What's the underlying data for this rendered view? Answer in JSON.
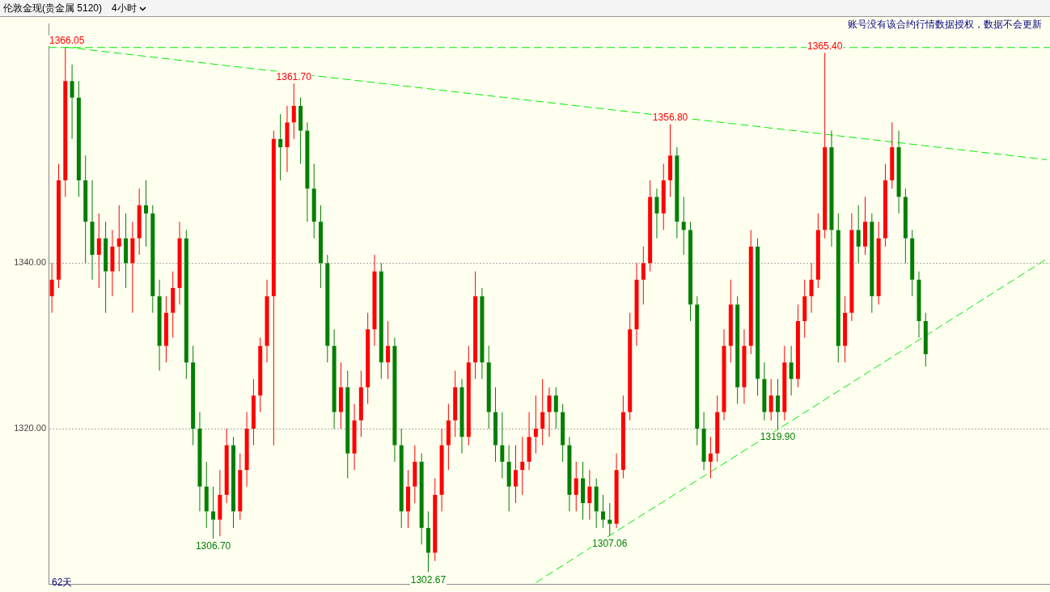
{
  "chart_data": {
    "type": "candlestick",
    "title": "伦敦金现(贵金属 5120)",
    "subtitle": "4小时",
    "categories": [
      null,
      null,
      null,
      null,
      null,
      null,
      null,
      null,
      null,
      null,
      null,
      null,
      null,
      null,
      null,
      null,
      null,
      null,
      null,
      null,
      null,
      null,
      null,
      null,
      null,
      null,
      null,
      null,
      null,
      null,
      null,
      null,
      null,
      null,
      null,
      null,
      null,
      null,
      null,
      null,
      null,
      null,
      null,
      null,
      null,
      null,
      null,
      null,
      null,
      null,
      null,
      null,
      null,
      null,
      null,
      null,
      null,
      null,
      null,
      null,
      null,
      null,
      null,
      null,
      null,
      null,
      null,
      null,
      null,
      null,
      null,
      null,
      null,
      null,
      null,
      null,
      null,
      null,
      null,
      null,
      null,
      null,
      null,
      null,
      null,
      null,
      null,
      null,
      null,
      null,
      null,
      null,
      null,
      null,
      null,
      null,
      null,
      null,
      null,
      null,
      null,
      null,
      null,
      null,
      null,
      null,
      null,
      null,
      null,
      null,
      null,
      null,
      null,
      null,
      null,
      null,
      null,
      null,
      null,
      null,
      null,
      null,
      null,
      null,
      null,
      null,
      null,
      null,
      null,
      null,
      null,
      null,
      null,
      null,
      null,
      null,
      null,
      null,
      null,
      null,
      null,
      null,
      null,
      null,
      null,
      null,
      null,
      null,
      null
    ],
    "ohlc": [
      [
        1336,
        1340,
        1334,
        1338
      ],
      [
        1338,
        1352,
        1337,
        1350
      ],
      [
        1350,
        1366.05,
        1348,
        1362
      ],
      [
        1362,
        1364,
        1355,
        1360
      ],
      [
        1360,
        1362,
        1348,
        1350
      ],
      [
        1350,
        1353,
        1340,
        1345
      ],
      [
        1345,
        1350,
        1338,
        1341
      ],
      [
        1341,
        1346,
        1337,
        1343
      ],
      [
        1343,
        1345,
        1334,
        1339
      ],
      [
        1339,
        1344,
        1336,
        1342
      ],
      [
        1342,
        1347,
        1339,
        1343
      ],
      [
        1343,
        1346,
        1337,
        1340
      ],
      [
        1340,
        1345,
        1334,
        1343
      ],
      [
        1343,
        1349,
        1341,
        1347
      ],
      [
        1347,
        1350,
        1342,
        1346
      ],
      [
        1346,
        1347,
        1334,
        1336
      ],
      [
        1336,
        1338,
        1327,
        1330
      ],
      [
        1330,
        1336,
        1328,
        1334
      ],
      [
        1334,
        1339,
        1331,
        1337
      ],
      [
        1337,
        1345,
        1335,
        1343
      ],
      [
        1343,
        1344,
        1326,
        1328
      ],
      [
        1328,
        1330,
        1318,
        1320
      ],
      [
        1320,
        1322,
        1310,
        1313
      ],
      [
        1313,
        1316,
        1308,
        1310
      ],
      [
        1310,
        1313,
        1306.7,
        1309
      ],
      [
        1309,
        1315,
        1307,
        1312
      ],
      [
        1312,
        1320,
        1311,
        1318
      ],
      [
        1318,
        1319,
        1308,
        1310
      ],
      [
        1310,
        1317,
        1309,
        1315
      ],
      [
        1315,
        1322,
        1313,
        1320
      ],
      [
        1320,
        1326,
        1318,
        1324
      ],
      [
        1324,
        1331,
        1322,
        1330
      ],
      [
        1330,
        1338,
        1328,
        1336
      ],
      [
        1336,
        1356,
        1318,
        1355
      ],
      [
        1355,
        1358,
        1350,
        1354
      ],
      [
        1354,
        1359,
        1351,
        1357
      ],
      [
        1357,
        1361.7,
        1355,
        1359
      ],
      [
        1359,
        1360,
        1352,
        1356
      ],
      [
        1356,
        1357,
        1345,
        1349
      ],
      [
        1349,
        1352,
        1343,
        1345
      ],
      [
        1345,
        1347,
        1337,
        1340
      ],
      [
        1340,
        1341,
        1328,
        1330
      ],
      [
        1330,
        1332,
        1320,
        1322
      ],
      [
        1322,
        1328,
        1320,
        1325
      ],
      [
        1325,
        1327,
        1314,
        1317
      ],
      [
        1317,
        1323,
        1315,
        1321
      ],
      [
        1321,
        1327,
        1319,
        1325
      ],
      [
        1325,
        1334,
        1323,
        1332
      ],
      [
        1332,
        1341,
        1330,
        1339
      ],
      [
        1339,
        1340,
        1326,
        1328
      ],
      [
        1328,
        1333,
        1326,
        1330
      ],
      [
        1330,
        1331,
        1316,
        1318
      ],
      [
        1318,
        1320,
        1308,
        1310
      ],
      [
        1310,
        1315,
        1308,
        1313
      ],
      [
        1313,
        1318,
        1311,
        1316
      ],
      [
        1316,
        1317,
        1306,
        1308
      ],
      [
        1308,
        1310,
        1302.67,
        1305
      ],
      [
        1305,
        1314,
        1304,
        1312
      ],
      [
        1312,
        1320,
        1310,
        1318
      ],
      [
        1318,
        1323,
        1315,
        1321
      ],
      [
        1321,
        1327,
        1319,
        1325
      ],
      [
        1325,
        1326,
        1317,
        1319
      ],
      [
        1319,
        1330,
        1318,
        1328
      ],
      [
        1328,
        1339,
        1326,
        1336
      ],
      [
        1336,
        1337,
        1326,
        1328
      ],
      [
        1328,
        1330,
        1320,
        1322
      ],
      [
        1322,
        1325,
        1316,
        1318
      ],
      [
        1318,
        1322,
        1314,
        1316
      ],
      [
        1316,
        1318,
        1310,
        1313
      ],
      [
        1313,
        1318,
        1311,
        1315
      ],
      [
        1315,
        1319,
        1312,
        1316
      ],
      [
        1316,
        1322,
        1315,
        1319
      ],
      [
        1319,
        1324,
        1317,
        1320
      ],
      [
        1320,
        1326,
        1318,
        1322
      ],
      [
        1322,
        1325,
        1319,
        1324
      ],
      [
        1324,
        1325,
        1320,
        1322
      ],
      [
        1322,
        1323,
        1316,
        1318
      ],
      [
        1318,
        1319,
        1310,
        1312
      ],
      [
        1312,
        1316,
        1310,
        1314
      ],
      [
        1314,
        1316,
        1309,
        1311
      ],
      [
        1311,
        1315,
        1309,
        1313
      ],
      [
        1313,
        1314,
        1308,
        1310
      ],
      [
        1310,
        1312,
        1308,
        1309
      ],
      [
        1309,
        1311,
        1307.06,
        1308.5
      ],
      [
        1308.5,
        1317,
        1308,
        1315
      ],
      [
        1315,
        1324,
        1314,
        1322
      ],
      [
        1322,
        1334,
        1321,
        1332
      ],
      [
        1332,
        1340,
        1330,
        1338
      ],
      [
        1338,
        1342,
        1335,
        1340
      ],
      [
        1340,
        1350,
        1339,
        1348
      ],
      [
        1348,
        1349,
        1343,
        1346
      ],
      [
        1346,
        1352,
        1344,
        1350
      ],
      [
        1350,
        1356.8,
        1348,
        1353
      ],
      [
        1353,
        1354,
        1343,
        1345
      ],
      [
        1345,
        1348,
        1341,
        1344
      ],
      [
        1344,
        1345,
        1333,
        1335
      ],
      [
        1335,
        1336,
        1318,
        1320
      ],
      [
        1320,
        1322,
        1315,
        1316
      ],
      [
        1316,
        1319,
        1314,
        1317
      ],
      [
        1317,
        1324,
        1316,
        1322
      ],
      [
        1322,
        1332,
        1321,
        1330
      ],
      [
        1330,
        1338,
        1328,
        1335
      ],
      [
        1335,
        1336,
        1323,
        1325
      ],
      [
        1325,
        1332,
        1323,
        1330
      ],
      [
        1330,
        1344,
        1329,
        1342
      ],
      [
        1342,
        1343,
        1324,
        1326
      ],
      [
        1326,
        1328,
        1321,
        1322
      ],
      [
        1322,
        1326,
        1321,
        1324
      ],
      [
        1324,
        1326,
        1319.9,
        1322
      ],
      [
        1322,
        1330,
        1321,
        1328
      ],
      [
        1328,
        1330,
        1324,
        1326
      ],
      [
        1326,
        1335,
        1325,
        1333
      ],
      [
        1333,
        1338,
        1331,
        1336
      ],
      [
        1336,
        1340,
        1334,
        1338
      ],
      [
        1338,
        1346,
        1337,
        1344
      ],
      [
        1344,
        1365.4,
        1343,
        1354
      ],
      [
        1354,
        1356,
        1342,
        1344
      ],
      [
        1344,
        1346,
        1328,
        1330
      ],
      [
        1330,
        1336,
        1328,
        1334
      ],
      [
        1334,
        1346,
        1333,
        1344
      ],
      [
        1344,
        1347,
        1340,
        1342
      ],
      [
        1342,
        1348,
        1341,
        1345
      ],
      [
        1345,
        1346,
        1334,
        1336
      ],
      [
        1336,
        1345,
        1335,
        1343
      ],
      [
        1343,
        1352,
        1342,
        1350
      ],
      [
        1350,
        1357,
        1349,
        1354
      ],
      [
        1354,
        1356,
        1346,
        1348
      ],
      [
        1348,
        1349,
        1340,
        1343
      ],
      [
        1343,
        1344,
        1336,
        1338
      ],
      [
        1338,
        1339,
        1331,
        1333
      ],
      [
        1333,
        1334,
        1327.5,
        1329
      ],
      null,
      null,
      null,
      null,
      null,
      null,
      null,
      null,
      null,
      null,
      null,
      null,
      null,
      null,
      null,
      null,
      null,
      null
    ],
    "colors": [
      "#ff0000",
      "#ff0000",
      "#ff0000",
      "#007f00",
      "#007f00",
      "#007f00",
      "#007f00",
      "#ff0000",
      "#007f00",
      "#ff0000",
      "#ff0000",
      "#007f00",
      "#ff0000",
      "#ff0000",
      "#007f00",
      "#007f00",
      "#007f00",
      "#ff0000",
      "#ff0000",
      "#ff0000",
      "#007f00",
      "#007f00",
      "#007f00",
      "#007f00",
      "#007f00",
      "#ff0000",
      "#ff0000",
      "#007f00",
      "#ff0000",
      "#ff0000",
      "#ff0000",
      "#ff0000",
      "#ff0000",
      "#ff0000",
      "#007f00",
      "#ff0000",
      "#ff0000",
      "#007f00",
      "#007f00",
      "#007f00",
      "#007f00",
      "#007f00",
      "#007f00",
      "#ff0000",
      "#007f00",
      "#ff0000",
      "#ff0000",
      "#ff0000",
      "#ff0000",
      "#007f00",
      "#ff0000",
      "#007f00",
      "#007f00",
      "#ff0000",
      "#ff0000",
      "#007f00",
      "#007f00",
      "#ff0000",
      "#ff0000",
      "#ff0000",
      "#ff0000",
      "#007f00",
      "#ff0000",
      "#ff0000",
      "#007f00",
      "#007f00",
      "#007f00",
      "#007f00",
      "#007f00",
      "#ff0000",
      "#ff0000",
      "#ff0000",
      "#ff0000",
      "#ff0000",
      "#ff0000",
      "#007f00",
      "#007f00",
      "#007f00",
      "#ff0000",
      "#007f00",
      "#ff0000",
      "#007f00",
      "#007f00",
      "#007f00",
      "#ff0000",
      "#ff0000",
      "#ff0000",
      "#ff0000",
      "#ff0000",
      "#ff0000",
      "#007f00",
      "#ff0000",
      "#ff0000",
      "#007f00",
      "#007f00",
      "#007f00",
      "#007f00",
      "#007f00",
      "#ff0000",
      "#ff0000",
      "#ff0000",
      "#ff0000",
      "#007f00",
      "#ff0000",
      "#ff0000",
      "#007f00",
      "#007f00",
      "#ff0000",
      "#007f00",
      "#ff0000",
      "#007f00",
      "#ff0000",
      "#ff0000",
      "#ff0000",
      "#ff0000",
      "#ff0000",
      "#007f00",
      "#007f00",
      "#ff0000",
      "#ff0000",
      "#007f00",
      "#ff0000",
      "#007f00",
      "#ff0000",
      "#ff0000",
      "#ff0000",
      "#007f00",
      "#007f00",
      "#007f00",
      "#007f00",
      "#007f00",
      null,
      null,
      null,
      null,
      null,
      null,
      null,
      null,
      null,
      null,
      null,
      null,
      null,
      null,
      null,
      null,
      null,
      null
    ],
    "series": [
      {
        "type": "line",
        "color": "#00ee00",
        "line_style": "dashed",
        "values": [
          null,
          null,
          1366.1,
          null,
          null,
          null,
          null,
          null,
          null,
          null,
          null,
          null,
          null,
          null,
          null,
          null,
          null,
          null,
          null,
          null,
          null,
          null,
          null,
          null,
          null,
          null,
          null,
          null,
          null,
          null,
          null,
          null,
          null,
          null,
          null,
          null,
          null,
          null,
          null,
          null,
          null,
          null,
          null,
          null,
          null,
          null,
          null,
          null,
          null,
          null,
          null,
          null,
          null,
          null,
          null,
          null,
          null,
          null,
          null,
          null,
          null,
          null,
          null,
          null,
          null,
          null,
          null,
          null,
          null,
          null,
          null,
          null,
          null,
          null,
          null,
          null,
          null,
          null,
          null,
          null,
          null,
          null,
          null,
          null,
          null,
          null,
          null,
          null,
          null,
          null,
          null,
          null,
          null,
          null,
          null,
          null,
          null,
          null,
          null,
          null,
          null,
          null,
          null,
          null,
          null,
          null,
          null,
          null,
          null,
          null,
          null,
          null,
          null,
          null,
          null,
          null,
          null,
          null,
          null,
          null,
          null,
          null,
          null,
          null,
          null,
          null,
          null,
          null,
          null,
          null,
          null,
          null,
          null,
          null,
          null,
          null,
          null,
          null,
          null,
          null,
          null,
          null,
          null,
          null,
          null,
          null,
          null,
          null,
          1352.5
        ]
      },
      {
        "type": "line",
        "color": "#00ee00",
        "line_style": "dashed",
        "values": [
          null,
          null,
          null,
          null,
          null,
          null,
          null,
          null,
          null,
          null,
          null,
          null,
          null,
          null,
          null,
          null,
          null,
          null,
          null,
          null,
          null,
          null,
          null,
          null,
          null,
          null,
          null,
          null,
          null,
          null,
          null,
          null,
          null,
          null,
          null,
          null,
          null,
          null,
          null,
          null,
          null,
          null,
          null,
          null,
          null,
          null,
          null,
          null,
          null,
          null,
          null,
          null,
          null,
          null,
          null,
          null,
          null,
          null,
          null,
          null,
          null,
          null,
          null,
          null,
          null,
          null,
          null,
          null,
          null,
          null,
          null,
          null,
          1301.4,
          null,
          null,
          null,
          null,
          null,
          null,
          null,
          null,
          null,
          null,
          1307.1,
          null,
          null,
          null,
          null,
          null,
          null,
          null,
          null,
          null,
          null,
          null,
          null,
          null,
          null,
          null,
          null,
          null,
          null,
          null,
          null,
          null,
          null,
          null,
          null,
          1319.9,
          null,
          null,
          null,
          null,
          null,
          null,
          null,
          null,
          null,
          null,
          null,
          null,
          null,
          null,
          null,
          null,
          null,
          null,
          null,
          null,
          null,
          null,
          null,
          null,
          null,
          null,
          null,
          null,
          null,
          null,
          null,
          null,
          null,
          null,
          null,
          null,
          null,
          null,
          null,
          1340.5
        ]
      }
    ],
    "ylim": [
      1301.2,
      1368.9
    ],
    "yticks": [
      {
        "value": 1340,
        "label": "1340.00"
      },
      {
        "value": 1320,
        "label": "1320.00"
      }
    ],
    "grid": "y",
    "tick_labels": "y",
    "ref_lines": [
      {
        "axis": "y",
        "value": 1366.05,
        "color": "#00ee00",
        "line_style": "dashed"
      }
    ],
    "annotations": [
      "账号没有该合约行情数据授权，数据不会更新",
      "62天",
      {
        "text": "1366.05",
        "y": 1366.05
      },
      {
        "text": "1361.70",
        "y": 1361.7
      },
      {
        "text": "1356.80",
        "y": 1356.8
      },
      {
        "text": "1365.40",
        "y": 1365.4
      },
      {
        "text": "1306.70",
        "y": 1306.7
      },
      {
        "text": "1302.67",
        "y": 1302.67
      },
      {
        "text": "1307.06",
        "y": 1307.06
      },
      {
        "text": "1319.90",
        "y": 1319.9
      }
    ]
  }
}
